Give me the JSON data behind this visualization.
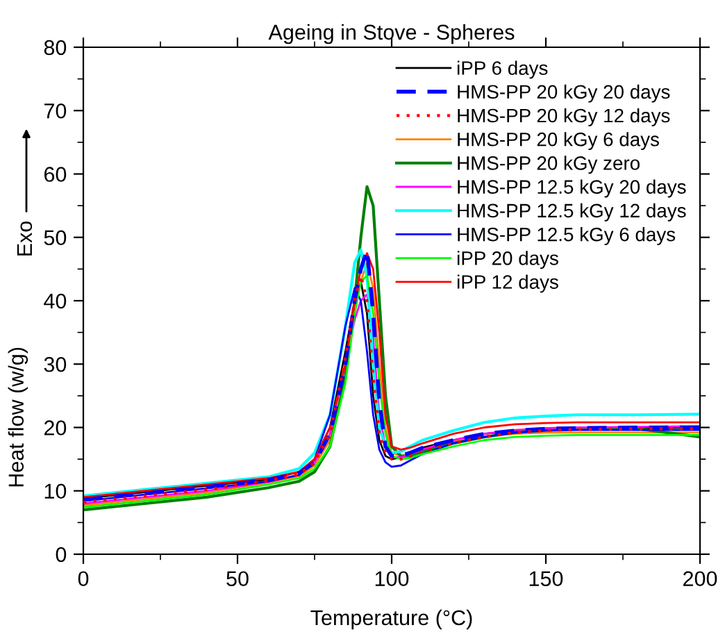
{
  "chart_data": {
    "type": "line",
    "title": "Ageing in Stove - Spheres",
    "xlabel": "Temperature (°C)",
    "ylabel": "Heat flow (w/g)",
    "annotations": [
      "Exo"
    ],
    "x": [
      0,
      20,
      40,
      60,
      70,
      75,
      80,
      85,
      88,
      90,
      92,
      94,
      96,
      98,
      100,
      103,
      106,
      110,
      120,
      130,
      140,
      150,
      160,
      180,
      200
    ],
    "xlim": [
      0,
      200
    ],
    "xticks": [
      0,
      50,
      100,
      150,
      200
    ],
    "ylim": [
      0,
      80
    ],
    "yticks": [
      0,
      10,
      20,
      30,
      40,
      50,
      60,
      70,
      80
    ],
    "grid": false,
    "legend": "top right",
    "marker": "none",
    "series": [
      {
        "name": "iPP 6 days",
        "color": "#000000",
        "line_style": "solid",
        "values": [
          8.8,
          9.8,
          10.8,
          11.8,
          13,
          15,
          20,
          32,
          40,
          43,
          38,
          25,
          18,
          15.5,
          15,
          15.3,
          16,
          16.8,
          18,
          19,
          19.5,
          19.7,
          19.8,
          19.9,
          20
        ]
      },
      {
        "name": "HMS-PP 20 kGy 20 days",
        "color": "#0000ff",
        "line_style": "dashed",
        "values": [
          8.6,
          9.6,
          10.6,
          11.7,
          12.8,
          14.5,
          19,
          30,
          40,
          45,
          48,
          38,
          24,
          17,
          15.5,
          15.5,
          16,
          16.8,
          18,
          19,
          19.5,
          19.8,
          19.9,
          20,
          20
        ]
      },
      {
        "name": "HMS-PP 20 kGy 12 days",
        "color": "#ff0000",
        "line_style": "dotted",
        "values": [
          8.2,
          9.2,
          10.2,
          11.6,
          12.6,
          14.5,
          19,
          31,
          40,
          44,
          40,
          28,
          19,
          16,
          15,
          15,
          15.5,
          16.2,
          17.5,
          18.5,
          19.2,
          19.5,
          19.7,
          19.8,
          19.8
        ]
      },
      {
        "name": "HMS-PP 20 kGy 6 days",
        "color": "#ff8000",
        "line_style": "solid",
        "values": [
          7.7,
          8.7,
          9.7,
          11.3,
          12.3,
          14,
          18,
          28,
          38,
          43,
          46,
          42,
          30,
          20,
          16,
          15.5,
          15.8,
          16.5,
          17.8,
          18.6,
          19,
          19.2,
          19.2,
          19.2,
          19.2
        ]
      },
      {
        "name": "HMS-PP 20 kGy zero",
        "color": "#008000",
        "line_style": "solid",
        "values": [
          7,
          8,
          9,
          10.5,
          11.5,
          13,
          17,
          28,
          40,
          50,
          58,
          55,
          40,
          25,
          17,
          15.5,
          15.5,
          16.2,
          17.5,
          18.5,
          19.2,
          19.6,
          19.8,
          19.8,
          18.5
        ]
      },
      {
        "name": "HMS-PP 12.5 kGy 20 days",
        "color": "#ff00ff",
        "line_style": "solid",
        "values": [
          8,
          9,
          10,
          11.4,
          12.5,
          14.5,
          19,
          30,
          37,
          40,
          41,
          34,
          22,
          17,
          15.3,
          15.3,
          15.8,
          16.5,
          18,
          19,
          19.6,
          19.9,
          20,
          20.1,
          20.2
        ]
      },
      {
        "name": "HMS-PP 12.5 kGy 12 days",
        "color": "#00ffff",
        "line_style": "solid",
        "values": [
          9.2,
          10.2,
          11.2,
          12.2,
          13.5,
          16,
          22,
          36,
          46,
          48,
          44,
          30,
          20,
          17,
          16,
          16.2,
          17,
          18,
          19.5,
          20.8,
          21.5,
          21.8,
          22,
          22,
          22.1
        ]
      },
      {
        "name": "HMS-PP 12.5 kGy 6 days",
        "color": "#0000ff",
        "line_style": "solid",
        "values": [
          8.4,
          9.4,
          10.4,
          11.5,
          12.5,
          15,
          22,
          36,
          42,
          40,
          32,
          22,
          16.5,
          14.5,
          13.8,
          14,
          14.8,
          15.8,
          17.5,
          18.5,
          19.2,
          19.5,
          19.6,
          19.6,
          19.6
        ]
      },
      {
        "name": "iPP 20 days",
        "color": "#00ff00",
        "line_style": "solid",
        "values": [
          7.4,
          8.4,
          9.4,
          11,
          12,
          13.5,
          17,
          27,
          38,
          43,
          44,
          38,
          27,
          19,
          15.5,
          15,
          15.2,
          15.8,
          17,
          18,
          18.5,
          18.7,
          18.8,
          18.8,
          18.8
        ]
      },
      {
        "name": "iPP 12 days",
        "color": "#ff0000",
        "line_style": "solid",
        "values": [
          9,
          10,
          11,
          12,
          13,
          15,
          20,
          30,
          40,
          45,
          47.5,
          45,
          35,
          22,
          17,
          16.5,
          16.8,
          17.5,
          19,
          20,
          20.5,
          20.7,
          20.8,
          20.8,
          20.8
        ]
      }
    ]
  }
}
